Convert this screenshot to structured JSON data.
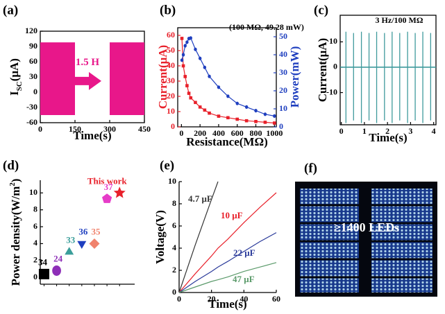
{
  "chart_data": [
    {
      "type": "band",
      "panel_label": "(a)",
      "x_label": "Time(s)",
      "y_label_parts": [
        "I",
        "SC",
        "(μA)"
      ],
      "annotation": "1.5 H",
      "color": "#e8178a",
      "xlim": [
        0,
        450
      ],
      "xticks": [
        0,
        150,
        300,
        450
      ],
      "ylim": [
        -60,
        120
      ],
      "yticks": [
        -60,
        -30,
        0,
        30,
        60,
        90,
        120
      ],
      "segments": [
        {
          "x": [
            0,
            150
          ],
          "min": -45,
          "max": 98
        },
        {
          "x": [
            300,
            450
          ],
          "min": -45,
          "max": 98
        }
      ]
    },
    {
      "type": "line",
      "panel_label": "(b)",
      "x_label": "Resistance(MΩ)",
      "y_label": "Current(μA)",
      "y2_label": "Power(mW)",
      "annotation": "(100 MΩ, 49.28 mW)",
      "xlim": [
        -40,
        1020
      ],
      "xticks": [
        0,
        200,
        400,
        600,
        800,
        1000
      ],
      "ylim": [
        0,
        65
      ],
      "yticks": [
        0,
        10,
        20,
        30,
        40,
        50,
        60
      ],
      "y2lim": [
        0,
        55
      ],
      "y2ticks": [
        0,
        10,
        20,
        30,
        40,
        50
      ],
      "x": [
        5,
        20,
        40,
        60,
        80,
        100,
        150,
        200,
        250,
        300,
        400,
        500,
        600,
        700,
        800,
        900,
        1000
      ],
      "series": [
        {
          "name": "Current",
          "color": "#e8202a",
          "marker": "square",
          "values": [
            58,
            40,
            33,
            27,
            22,
            19,
            16,
            13,
            11,
            9,
            7,
            6,
            5,
            4,
            3.5,
            3,
            2.5
          ]
        },
        {
          "name": "Power",
          "color": "#1f3fbf",
          "marker": "circle",
          "axis": "y2",
          "values": [
            37,
            40,
            45,
            47,
            49,
            49.28,
            43,
            38,
            33,
            28,
            22,
            17,
            13,
            11,
            9,
            7,
            6
          ]
        }
      ]
    },
    {
      "type": "spikes",
      "panel_label": "(c)",
      "x_label": "Time(s)",
      "y_label": "Current(μA)",
      "annotation": "3 Hz/100 MΩ",
      "color": "#3f9a9c",
      "xlim": [
        -0.05,
        4.1
      ],
      "xticks": [
        0,
        1,
        2,
        3,
        4
      ],
      "ylim": [
        -22.7,
        20.5
      ],
      "yticks": [
        -10,
        0,
        10
      ],
      "baseline": 0,
      "spike_x": [
        0.2,
        0.53,
        0.87,
        1.2,
        1.53,
        1.87,
        2.2,
        2.53,
        2.87,
        3.2,
        3.53,
        3.87
      ],
      "spike_max": [
        14,
        13.5,
        14,
        13.5,
        14,
        13.5,
        14,
        13.5,
        14,
        13.5,
        14,
        13.5
      ],
      "spike_min": [
        -22,
        -21,
        -22,
        -21,
        -22,
        -21,
        -22,
        -21,
        -22,
        -21,
        -22,
        -21
      ]
    },
    {
      "type": "scatter",
      "panel_label": "(d)",
      "y_label_parts": [
        "Power density(W/m",
        "2",
        ")"
      ],
      "ylim": [
        -0.8,
        11.5
      ],
      "yticks": [
        0,
        2,
        4,
        6,
        8,
        10
      ],
      "labels": [
        "34",
        "24",
        "33",
        "36",
        "35",
        "37",
        "This work"
      ],
      "values": [
        0.4,
        0.8,
        3,
        4,
        4,
        9.3,
        10
      ],
      "colors": [
        "#000000",
        "#8e2fb8",
        "#3a9e9a",
        "#1f3fbf",
        "#f0826c",
        "#e63cc8",
        "#e8202a"
      ],
      "markers": [
        "square",
        "circle",
        "triangle",
        "triangle-down",
        "diamond",
        "pentagon",
        "star"
      ]
    },
    {
      "type": "line",
      "panel_label": "(e)",
      "x_label": "Time(s)",
      "y_label": "Voltage(V)",
      "xlim": [
        0,
        60
      ],
      "xticks": [
        0,
        20,
        40,
        60
      ],
      "ylim": [
        0,
        10
      ],
      "yticks": [
        0,
        2,
        4,
        6,
        8,
        10
      ],
      "x": [
        0,
        10,
        20,
        24,
        30,
        40,
        50,
        60
      ],
      "series": [
        {
          "name": "4.7 μF",
          "color": "#333333",
          "values": [
            0,
            4.3,
            8.4,
            10,
            null,
            null,
            null,
            null
          ]
        },
        {
          "name": "10 μF",
          "color": "#e8202a",
          "values": [
            0,
            1.7,
            3.3,
            4,
            4.8,
            6.3,
            7.7,
            9
          ]
        },
        {
          "name": "22 μF",
          "color": "#2a3a9a",
          "values": [
            0,
            1,
            1.9,
            2.3,
            2.8,
            3.7,
            4.6,
            5.4
          ]
        },
        {
          "name": "47 μF",
          "color": "#5a9a6a",
          "values": [
            0,
            0.5,
            1,
            1.15,
            1.4,
            1.9,
            2.3,
            2.7
          ]
        }
      ]
    }
  ],
  "photo": {
    "panel_label": "(f)",
    "text": "≥1400 LEDs"
  }
}
